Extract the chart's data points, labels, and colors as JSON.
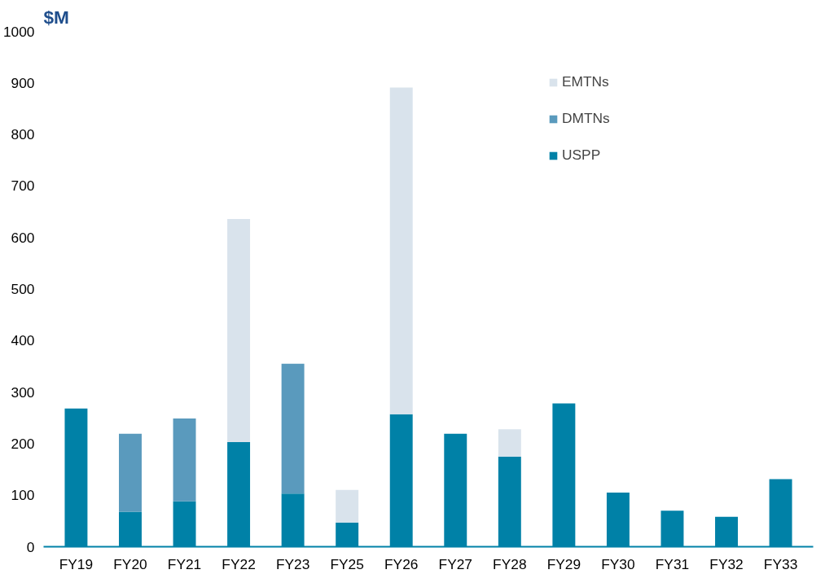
{
  "chart_data": {
    "type": "bar",
    "title": "$M",
    "stacked": true,
    "categories": [
      "FY19",
      "FY20",
      "FY21",
      "FY22",
      "FY23",
      "FY25",
      "FY26",
      "FY27",
      "FY28",
      "FY29",
      "FY30",
      "FY31",
      "FY32",
      "FY33"
    ],
    "series": [
      {
        "name": "USPP",
        "color": "#0081a7",
        "values": [
          268,
          68,
          88,
          203,
          103,
          47,
          257,
          219,
          175,
          278,
          105,
          70,
          58,
          131
        ]
      },
      {
        "name": "DMTNs",
        "color": "#5a9abd",
        "values": [
          null,
          151,
          161,
          null,
          252,
          null,
          null,
          null,
          null,
          null,
          null,
          null,
          null,
          null
        ]
      },
      {
        "name": "EMTNs",
        "color": "#d9e3ec",
        "values": [
          null,
          null,
          null,
          433,
          null,
          63,
          634,
          null,
          53,
          null,
          null,
          null,
          null,
          null
        ]
      }
    ],
    "ylim": [
      0,
      1000
    ],
    "yticks": [
      0,
      100,
      200,
      300,
      400,
      500,
      600,
      700,
      800,
      900,
      1000
    ],
    "grid": false,
    "legend": "top right"
  }
}
